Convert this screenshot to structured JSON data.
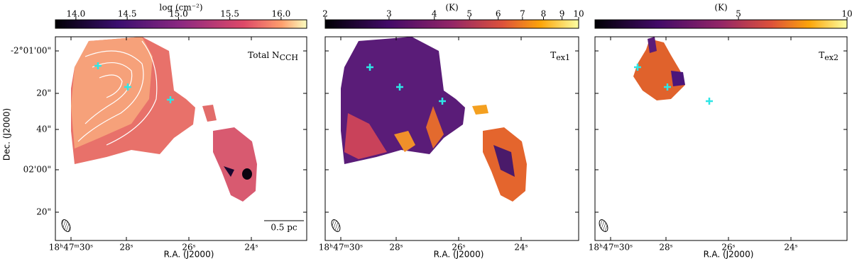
{
  "figure": {
    "panels": [
      {
        "colorbar": {
          "label": "log (cm⁻²)",
          "lim": [
            13.8,
            16.25
          ],
          "log": false,
          "ticks": [
            {
              "value": 14.0,
              "label": "14.0"
            },
            14.5,
            {
              "value": 15.0,
              "label": "15.0"
            },
            15.5,
            {
              "value": 16.0,
              "label": "16.0"
            }
          ]
        },
        "label": "Total N",
        "label_sub": "CCH",
        "scalebar": "0.5 pc"
      },
      {
        "colorbar": {
          "label": "(K)",
          "lim": [
            2,
            10
          ],
          "log": true,
          "ticks": [
            2,
            3,
            4,
            5,
            6,
            7,
            8,
            9,
            10
          ]
        },
        "label": "T",
        "label_sub": "ex1"
      },
      {
        "colorbar": {
          "label": "(K)",
          "lim": [
            2,
            10
          ],
          "log": true,
          "ticks": [
            5,
            10
          ]
        },
        "label": "T",
        "label_sub": "ex2"
      }
    ],
    "y_axis": {
      "label": "Dec. (J2000)",
      "ticks": [
        "-2°01'00\"",
        "20\"",
        "40\"",
        "02'00\"",
        "20\""
      ]
    },
    "x_axis": {
      "label": "R.A. (J2000)",
      "ticks": [
        "18ʰ47ᵐ30ˢ",
        "28ˢ",
        "26ˢ",
        "24ˢ"
      ]
    }
  }
}
